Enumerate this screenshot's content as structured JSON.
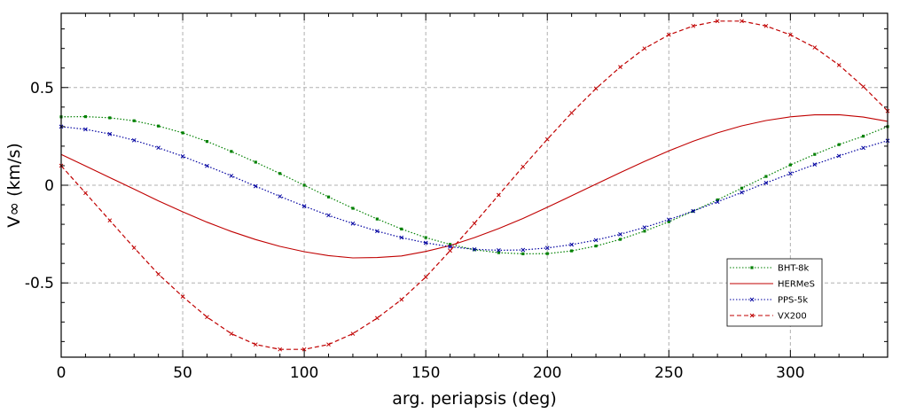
{
  "chart_data": {
    "type": "line",
    "xlabel": "arg. periapsis (deg)",
    "ylabel": "V∞ (km/s)",
    "xlim": [
      0,
      340
    ],
    "ylim": [
      -0.88,
      0.88
    ],
    "xticks": [
      0,
      50,
      100,
      150,
      200,
      250,
      300
    ],
    "yticks": [
      -0.5,
      0,
      0.5
    ],
    "ytick_labels": [
      "-0.5",
      "0",
      "0.5"
    ],
    "grid": true,
    "legend_position": "bottom-right",
    "x": [
      0,
      10,
      20,
      30,
      40,
      50,
      60,
      70,
      80,
      90,
      100,
      110,
      120,
      130,
      140,
      150,
      160,
      170,
      180,
      190,
      200,
      210,
      220,
      230,
      240,
      250,
      260,
      270,
      280,
      290,
      300,
      310,
      320,
      330,
      340
    ],
    "series": [
      {
        "name": "BHT-8k",
        "color": "#008000",
        "style": "dotted",
        "marker": "square",
        "values": [
          0.35,
          0.351,
          0.345,
          0.33,
          0.303,
          0.268,
          0.224,
          0.173,
          0.118,
          0.06,
          0.0,
          -0.06,
          -0.118,
          -0.173,
          -0.224,
          -0.268,
          -0.303,
          -0.33,
          -0.345,
          -0.351,
          -0.35,
          -0.336,
          -0.311,
          -0.277,
          -0.235,
          -0.187,
          -0.133,
          -0.075,
          -0.015,
          0.045,
          0.104,
          0.158,
          0.208,
          0.251,
          0.3
        ]
      },
      {
        "name": "HERMeS",
        "color": "#c00000",
        "style": "solid",
        "marker": "none",
        "values": [
          0.158,
          0.099,
          0.039,
          -0.02,
          -0.08,
          -0.136,
          -0.189,
          -0.237,
          -0.278,
          -0.313,
          -0.34,
          -0.36,
          -0.372,
          -0.37,
          -0.362,
          -0.339,
          -0.309,
          -0.268,
          -0.222,
          -0.17,
          -0.113,
          -0.054,
          0.006,
          0.065,
          0.122,
          0.176,
          0.225,
          0.268,
          0.304,
          0.331,
          0.35,
          0.36,
          0.361,
          0.349,
          0.327
        ]
      },
      {
        "name": "PPS-5k",
        "color": "#0000a0",
        "style": "dotted",
        "marker": "x",
        "values": [
          0.3,
          0.286,
          0.262,
          0.23,
          0.192,
          0.148,
          0.099,
          0.048,
          -0.005,
          -0.057,
          -0.107,
          -0.154,
          -0.196,
          -0.235,
          -0.268,
          -0.295,
          -0.315,
          -0.328,
          -0.333,
          -0.331,
          -0.321,
          -0.304,
          -0.281,
          -0.251,
          -0.216,
          -0.176,
          -0.132,
          -0.085,
          -0.037,
          0.012,
          0.06,
          0.106,
          0.15,
          0.191,
          0.228
        ]
      },
      {
        "name": "VX200",
        "color": "#c00000",
        "style": "dashed",
        "marker": "x",
        "values": [
          0.1,
          -0.04,
          -0.18,
          -0.32,
          -0.455,
          -0.57,
          -0.675,
          -0.76,
          -0.815,
          -0.84,
          -0.84,
          -0.815,
          -0.76,
          -0.68,
          -0.585,
          -0.47,
          -0.335,
          -0.195,
          -0.05,
          0.095,
          0.235,
          0.37,
          0.495,
          0.605,
          0.7,
          0.77,
          0.815,
          0.84,
          0.84,
          0.815,
          0.77,
          0.705,
          0.615,
          0.505,
          0.38
        ]
      }
    ]
  }
}
